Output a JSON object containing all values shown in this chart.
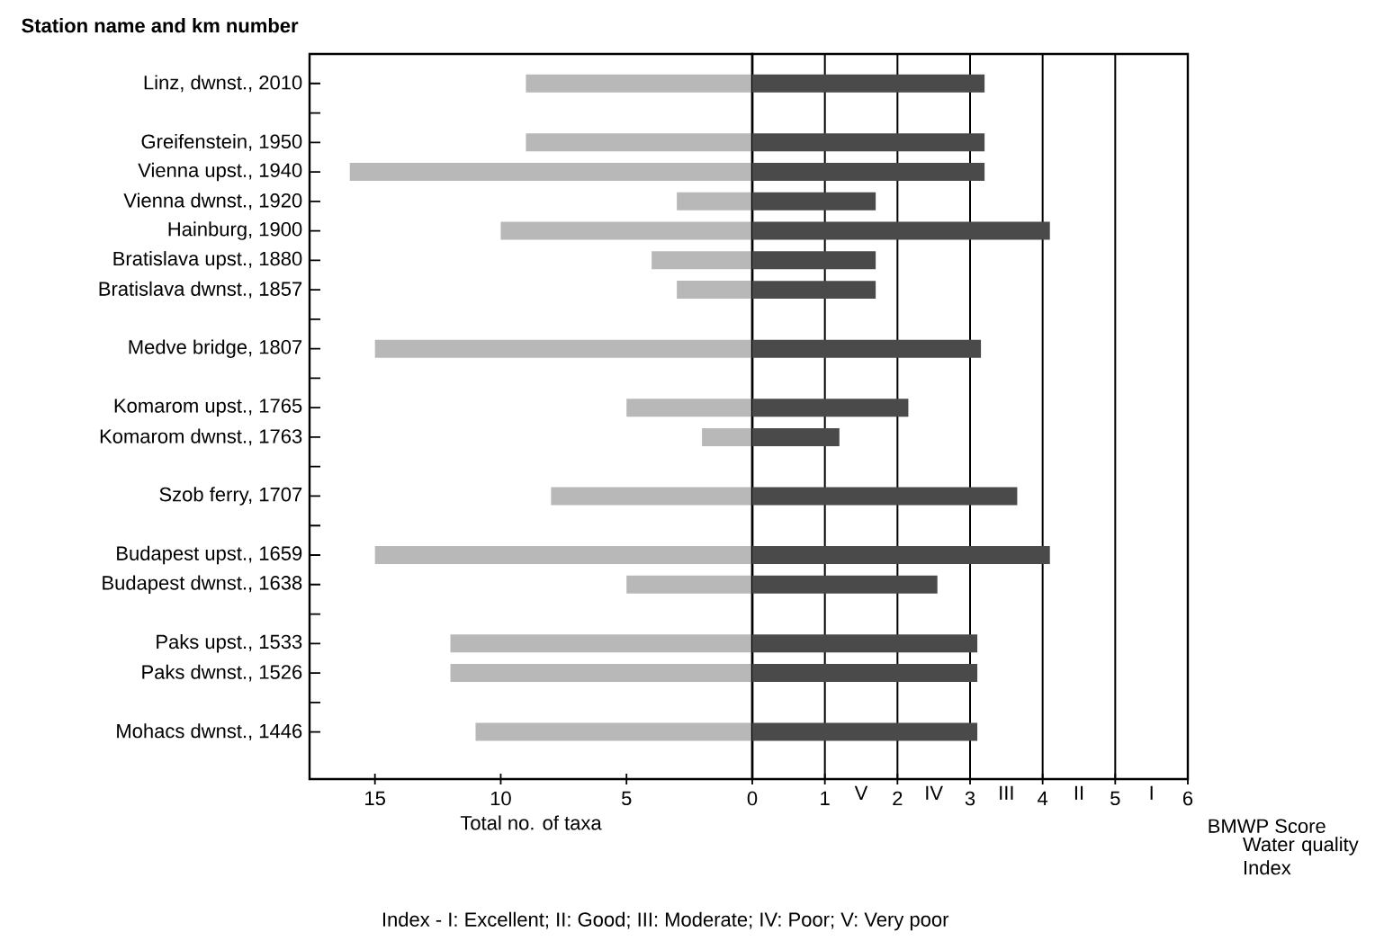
{
  "chart_data": [
    {
      "type": "bar",
      "orientation": "horizontal",
      "ylabel": "Station name and km number",
      "xlabel": "Total no. of taxa",
      "categories": [
        "Linz, dwnst., 2010",
        null,
        "Greifenstein, 1950",
        "Vienna upst., 1940",
        "Vienna dwnst., 1920",
        "Hainburg, 1900",
        "Bratislava upst., 1880",
        "Bratislava dwnst., 1857",
        null,
        "Medve bridge, 1807",
        null,
        "Komarom upst., 1765",
        "Komarom dwnst., 1763",
        null,
        "Szob ferry, 1707",
        null,
        "Budapest upst., 1659",
        "Budapest dwnst., 1638",
        null,
        "Paks upst., 1533",
        "Paks dwnst., 1526",
        null,
        "Mohacs dwnst., 1446"
      ],
      "values": [
        9,
        null,
        9,
        16,
        3,
        10,
        4,
        3,
        null,
        15,
        null,
        5,
        2,
        null,
        8,
        null,
        15,
        5,
        null,
        12,
        12,
        null,
        11
      ],
      "color": "#b8b8b8",
      "xlim": [
        17.6,
        0
      ],
      "xticks": [
        15,
        10,
        5,
        0
      ]
    },
    {
      "type": "bar",
      "orientation": "horizontal",
      "xlabel": "BMWP Score",
      "categories": [
        null,
        null,
        null,
        null,
        null,
        null,
        null,
        null,
        null,
        null,
        null,
        null,
        null,
        null,
        null,
        null,
        null,
        null,
        null,
        null,
        null,
        null,
        null
      ],
      "values": [
        3.2,
        null,
        3.2,
        3.2,
        1.7,
        4.1,
        1.7,
        1.7,
        null,
        3.15,
        null,
        2.15,
        1.2,
        null,
        3.65,
        null,
        4.1,
        2.55,
        null,
        3.1,
        3.1,
        null,
        3.1
      ],
      "color": "#4a4a4a",
      "xlim": [
        0,
        6
      ],
      "xticks": [
        1,
        2,
        3,
        4,
        5,
        6
      ],
      "grid": "x",
      "tick_labels": "x",
      "annotations": [
        "V",
        "IV",
        "III",
        "II",
        "I",
        "Water quality Index",
        "Index - I: Excellent;  II: Good;  III: Moderate;  IV: Poor;  V: Very poor"
      ]
    }
  ]
}
